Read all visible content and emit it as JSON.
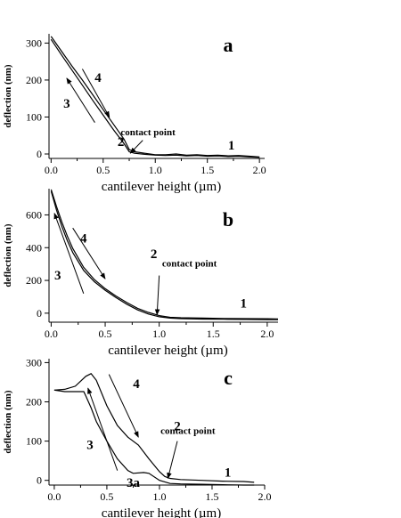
{
  "chart_data": [
    {
      "type": "line",
      "panel_label": "a",
      "xlabel": "cantilever height (µm)",
      "ylabel": "deflection (nm)",
      "xlim": [
        -0.02,
        2.05
      ],
      "ylim": [
        -12,
        325
      ],
      "xticks": [
        0.0,
        0.5,
        1.0,
        1.5,
        2.0
      ],
      "xtick_labels": [
        "0.0",
        "0.5",
        "1.0",
        "1.5",
        "2.0"
      ],
      "yticks": [
        0,
        100,
        200,
        300
      ],
      "ytick_labels": [
        "0",
        "100",
        "200",
        "300"
      ],
      "grid": false,
      "series": [
        {
          "x": [
            0.0,
            0.1,
            0.2,
            0.3,
            0.4,
            0.5,
            0.6,
            0.7,
            0.75,
            0.8,
            0.9,
            1.0,
            1.1,
            1.2,
            1.3,
            1.4,
            1.5,
            1.6,
            1.7,
            1.8,
            1.9,
            2.0
          ],
          "y": [
            318,
            278,
            238,
            200,
            160,
            120,
            80,
            40,
            12,
            6,
            2,
            -2,
            -2,
            0,
            -3,
            -2,
            -4,
            -3,
            -5,
            -4,
            -6,
            -8
          ]
        },
        {
          "x": [
            0.0,
            0.1,
            0.2,
            0.3,
            0.4,
            0.5,
            0.6,
            0.7,
            0.75,
            0.8,
            0.9,
            1.0,
            1.1,
            1.2,
            1.3,
            1.4,
            1.5,
            1.6,
            1.7,
            1.8,
            1.9,
            2.0
          ],
          "y": [
            310,
            268,
            227,
            186,
            145,
            105,
            65,
            28,
            6,
            2,
            -1,
            -3,
            -4,
            -3,
            -5,
            -4,
            -6,
            -5,
            -7,
            -6,
            -8,
            -9
          ]
        }
      ],
      "annotations": [
        {
          "text": "4",
          "x": 0.45,
          "y": 195,
          "arrow_from": [
            0.3,
            230
          ],
          "arrow_to": [
            0.56,
            100
          ]
        },
        {
          "text": "3",
          "x": 0.15,
          "y": 125,
          "arrow_from": [
            0.42,
            85
          ],
          "arrow_to": [
            0.15,
            205
          ]
        },
        {
          "text": "2",
          "x": 0.67,
          "y": 22
        },
        {
          "text": "contact point",
          "x": 0.93,
          "y": 50,
          "arrow_from": [
            0.88,
            37
          ],
          "arrow_to": [
            0.76,
            2
          ]
        },
        {
          "text": "1",
          "x": 1.73,
          "y": 12
        }
      ]
    },
    {
      "type": "line",
      "panel_label": "b",
      "xlabel": "cantilever height (µm)",
      "ylabel": "deflection (nm)",
      "xlim": [
        -0.02,
        2.1
      ],
      "ylim": [
        -55,
        760
      ],
      "xticks": [
        0.0,
        0.5,
        1.0,
        1.5,
        2.0
      ],
      "xtick_labels": [
        "0.0",
        "0.5",
        "1.0",
        "1.5",
        "2.0"
      ],
      "yticks": [
        0,
        200,
        400,
        600
      ],
      "ytick_labels": [
        "0",
        "200",
        "400",
        "600"
      ],
      "grid": false,
      "series": [
        {
          "x": [
            0.0,
            0.05,
            0.1,
            0.15,
            0.2,
            0.3,
            0.4,
            0.5,
            0.6,
            0.7,
            0.8,
            0.9,
            1.0,
            1.1,
            1.2,
            1.4,
            1.6,
            1.8,
            2.0,
            2.1
          ],
          "y": [
            755,
            650,
            555,
            470,
            395,
            280,
            205,
            150,
            105,
            65,
            30,
            5,
            -15,
            -25,
            -28,
            -30,
            -32,
            -33,
            -34,
            -35
          ]
        },
        {
          "x": [
            0.0,
            0.05,
            0.1,
            0.15,
            0.2,
            0.3,
            0.4,
            0.5,
            0.6,
            0.7,
            0.8,
            0.9,
            1.0,
            1.1,
            1.2,
            1.4,
            1.6,
            1.8,
            2.0,
            2.1
          ],
          "y": [
            745,
            628,
            528,
            442,
            370,
            262,
            192,
            140,
            95,
            55,
            20,
            -5,
            -22,
            -30,
            -33,
            -36,
            -37,
            -38,
            -39,
            -40
          ]
        }
      ],
      "annotations": [
        {
          "text": "4",
          "x": 0.3,
          "y": 430,
          "arrow_from": [
            0.2,
            520
          ],
          "arrow_to": [
            0.5,
            210
          ]
        },
        {
          "text": "3",
          "x": 0.06,
          "y": 205,
          "arrow_from": [
            0.3,
            120
          ],
          "arrow_to": [
            0.03,
            610
          ]
        },
        {
          "text": "2",
          "x": 0.95,
          "y": 335
        },
        {
          "text": "contact point",
          "x": 1.28,
          "y": 285
        },
        {
          "text": "1",
          "x": 1.78,
          "y": 35
        }
      ],
      "contact_point_arrow": {
        "from": [
          1.0,
          230
        ],
        "to": [
          0.98,
          -10
        ]
      }
    },
    {
      "type": "line",
      "panel_label": "c",
      "xlabel": "cantilever height (µm)",
      "ylabel": "deflection (nm)",
      "xlim": [
        -0.05,
        2.0
      ],
      "ylim": [
        -12,
        310
      ],
      "xticks": [
        0.0,
        0.5,
        1.0,
        1.5,
        2.0
      ],
      "xtick_labels": [
        "0.0",
        "0.5",
        "1.0",
        "1.5",
        "2.0"
      ],
      "yticks": [
        0,
        100,
        200,
        300
      ],
      "ytick_labels": [
        "0",
        "100",
        "200",
        "300"
      ],
      "grid": false,
      "series": [
        {
          "x": [
            0.0,
            0.1,
            0.2,
            0.3,
            0.35,
            0.4,
            0.5,
            0.6,
            0.7,
            0.8,
            0.9,
            1.0,
            1.05,
            1.1,
            1.2,
            1.4,
            1.6,
            1.8,
            1.9
          ],
          "y": [
            230,
            232,
            240,
            265,
            272,
            255,
            190,
            140,
            110,
            90,
            55,
            22,
            10,
            5,
            2,
            0,
            -2,
            -3,
            -5
          ]
        },
        {
          "x": [
            0.0,
            0.1,
            0.2,
            0.28,
            0.3,
            0.35,
            0.4,
            0.5,
            0.6,
            0.7,
            0.75,
            0.85,
            0.9,
            1.0,
            1.1,
            1.2,
            1.4,
            1.6,
            1.8,
            1.9
          ],
          "y": [
            230,
            226,
            226,
            226,
            215,
            185,
            150,
            100,
            55,
            25,
            18,
            20,
            18,
            0,
            -8,
            -9,
            -10,
            -11,
            -12,
            -12
          ]
        }
      ],
      "annotations": [
        {
          "text": "4",
          "x": 0.78,
          "y": 235,
          "arrow_from": [
            0.52,
            270
          ],
          "arrow_to": [
            0.8,
            110
          ]
        },
        {
          "text": "3",
          "x": 0.34,
          "y": 80,
          "arrow_from": [
            0.6,
            25
          ],
          "arrow_to": [
            0.32,
            235
          ]
        },
        {
          "text": "3a",
          "x": 0.75,
          "y": -16
        },
        {
          "text": "2",
          "x": 1.17,
          "y": 128
        },
        {
          "text": "contact point",
          "x": 1.27,
          "y": 118,
          "arrow_from": [
            1.17,
            100
          ],
          "arrow_to": [
            1.08,
            5
          ]
        },
        {
          "text": "1",
          "x": 1.65,
          "y": 10
        }
      ]
    }
  ]
}
